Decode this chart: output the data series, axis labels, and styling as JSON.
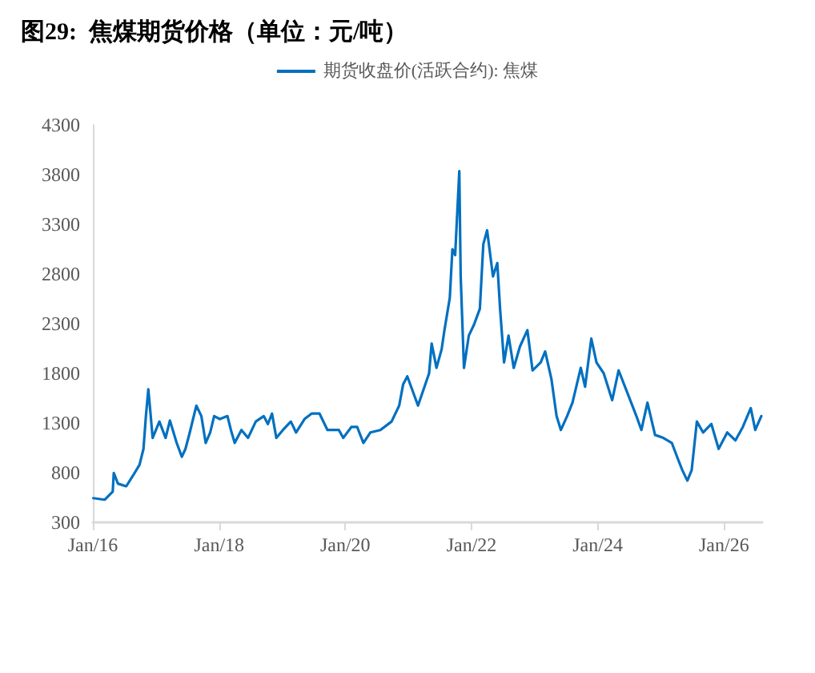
{
  "chart_data": {
    "type": "line",
    "title": "图29:  焦煤期货价格（单位：元/吨）",
    "x": [
      "2016-01-04",
      "2016-03-10",
      "2016-04-25",
      "2016-05-01",
      "2016-05-25",
      "2016-07-12",
      "2016-08-20",
      "2016-09-27",
      "2016-10-20",
      "2016-11-03",
      "2016-11-17",
      "2016-12-01",
      "2016-12-12",
      "2017-01-20",
      "2017-02-25",
      "2017-03-22",
      "2017-04-30",
      "2017-05-30",
      "2017-06-20",
      "2017-07-15",
      "2017-08-22",
      "2017-09-20",
      "2017-10-15",
      "2017-11-10",
      "2017-12-03",
      "2018-01-05",
      "2018-02-18",
      "2018-03-10",
      "2018-04-01",
      "2018-05-10",
      "2018-06-17",
      "2018-08-01",
      "2018-09-16",
      "2018-10-10",
      "2018-11-03",
      "2018-11-28",
      "2019-01-05",
      "2019-02-20",
      "2019-03-22",
      "2019-05-10",
      "2019-06-20",
      "2019-08-05",
      "2019-09-20",
      "2019-11-25",
      "2019-12-20",
      "2020-02-05",
      "2020-03-10",
      "2020-04-15",
      "2020-05-25",
      "2020-07-22",
      "2020-09-25",
      "2020-11-08",
      "2020-12-01",
      "2020-12-25",
      "2021-02-25",
      "2021-04-30",
      "2021-05-15",
      "2021-06-12",
      "2021-07-12",
      "2021-07-28",
      "2021-08-28",
      "2021-09-12",
      "2021-09-28",
      "2021-10-22",
      "2021-10-30",
      "2021-11-18",
      "2021-12-16",
      "2022-01-15",
      "2022-02-18",
      "2022-03-10",
      "2022-04-01",
      "2022-05-05",
      "2022-05-30",
      "2022-06-15",
      "2022-07-08",
      "2022-08-03",
      "2022-09-02",
      "2022-10-08",
      "2022-11-20",
      "2022-12-20",
      "2023-02-05",
      "2023-03-03",
      "2023-04-08",
      "2023-05-08",
      "2023-06-02",
      "2023-07-08",
      "2023-08-08",
      "2023-09-25",
      "2023-10-20",
      "2023-11-25",
      "2023-12-25",
      "2024-02-05",
      "2024-03-25",
      "2024-05-01",
      "2024-06-25",
      "2024-08-12",
      "2024-09-10",
      "2024-10-15",
      "2024-11-28",
      "2025-01-15",
      "2025-03-05",
      "2025-04-10",
      "2025-05-05",
      "2025-06-03",
      "2025-06-28",
      "2025-07-28",
      "2025-09-02",
      "2025-10-20",
      "2025-12-01",
      "2026-01-20",
      "2026-03-08",
      "2026-04-20",
      "2026-06-05",
      "2026-07-01",
      "2026-08-05"
    ],
    "series": [
      {
        "name": "期货收盘价(活跃合约): 焦煤",
        "color": "#0070c0",
        "values": [
          544,
          528,
          609,
          798,
          690,
          663,
          770,
          880,
          1040,
          1370,
          1640,
          1370,
          1150,
          1315,
          1150,
          1325,
          1100,
          960,
          1040,
          1205,
          1475,
          1370,
          1100,
          1205,
          1370,
          1340,
          1370,
          1230,
          1100,
          1230,
          1150,
          1315,
          1370,
          1290,
          1395,
          1150,
          1230,
          1315,
          1205,
          1340,
          1395,
          1395,
          1230,
          1230,
          1150,
          1260,
          1260,
          1100,
          1205,
          1230,
          1315,
          1475,
          1690,
          1770,
          1475,
          1800,
          2100,
          1855,
          2045,
          2235,
          2560,
          3050,
          2990,
          3835,
          2775,
          1855,
          2180,
          2290,
          2450,
          3100,
          3240,
          2775,
          2910,
          2450,
          1910,
          2180,
          1855,
          2070,
          2235,
          1830,
          1910,
          2020,
          1745,
          1370,
          1230,
          1370,
          1505,
          1855,
          1665,
          2150,
          1910,
          1800,
          1530,
          1830,
          1585,
          1370,
          1230,
          1505,
          1180,
          1150,
          1100,
          935,
          825,
          720,
          825,
          1315,
          1205,
          1290,
          1040,
          1205,
          1125,
          1260,
          1450,
          1230,
          1370
        ]
      }
    ],
    "xlim": [
      "2016-01-01",
      "2026-08-10"
    ],
    "xticks": [
      {
        "value": "2016-01-01",
        "label": "Jan/16"
      },
      {
        "value": "2018-01-01",
        "label": "Jan/18"
      },
      {
        "value": "2020-01-01",
        "label": "Jan/20"
      },
      {
        "value": "2022-01-01",
        "label": "Jan/22"
      },
      {
        "value": "2024-01-01",
        "label": "Jan/24"
      },
      {
        "value": "2026-01-01",
        "label": "Jan/26"
      }
    ],
    "ylim": [
      300,
      4300
    ],
    "yticks": [
      300,
      800,
      1300,
      1800,
      2300,
      2800,
      3300,
      3800,
      4300
    ],
    "legend": "top",
    "grid": false,
    "marker": "none",
    "line_style": "solid"
  }
}
